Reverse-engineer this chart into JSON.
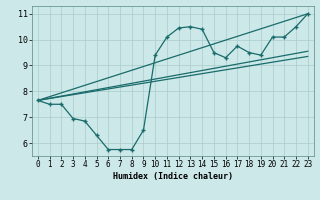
{
  "xlabel": "Humidex (Indice chaleur)",
  "bg_color": "#cce8e8",
  "line_color": "#1a6b6b",
  "grid_color": "#aacccc",
  "xlim": [
    -0.5,
    23.5
  ],
  "ylim": [
    5.5,
    11.3
  ],
  "xticks": [
    0,
    1,
    2,
    3,
    4,
    5,
    6,
    7,
    8,
    9,
    10,
    11,
    12,
    13,
    14,
    15,
    16,
    17,
    18,
    19,
    20,
    21,
    22,
    23
  ],
  "yticks": [
    6,
    7,
    8,
    9,
    10,
    11
  ],
  "curve_main_x": [
    0,
    1,
    2,
    3,
    4,
    5,
    6,
    7,
    8,
    9,
    10,
    11,
    12,
    13,
    14,
    15,
    16,
    17,
    18,
    19,
    20,
    21,
    22,
    23
  ],
  "curve_main_y": [
    7.65,
    7.5,
    7.5,
    6.95,
    6.85,
    6.3,
    5.75,
    5.75,
    5.75,
    6.5,
    9.4,
    10.1,
    10.45,
    10.5,
    10.4,
    9.5,
    9.3,
    9.75,
    9.5,
    9.4,
    10.1,
    10.1,
    10.5,
    11.0
  ],
  "curve_line1_x": [
    0,
    23
  ],
  "curve_line1_y": [
    7.65,
    11.0
  ],
  "curve_line2_x": [
    0,
    23
  ],
  "curve_line2_y": [
    7.65,
    9.35
  ],
  "curve_line3_x": [
    0,
    23
  ],
  "curve_line3_y": [
    7.65,
    9.55
  ],
  "xlabel_fontsize": 6,
  "tick_fontsize": 5.5
}
